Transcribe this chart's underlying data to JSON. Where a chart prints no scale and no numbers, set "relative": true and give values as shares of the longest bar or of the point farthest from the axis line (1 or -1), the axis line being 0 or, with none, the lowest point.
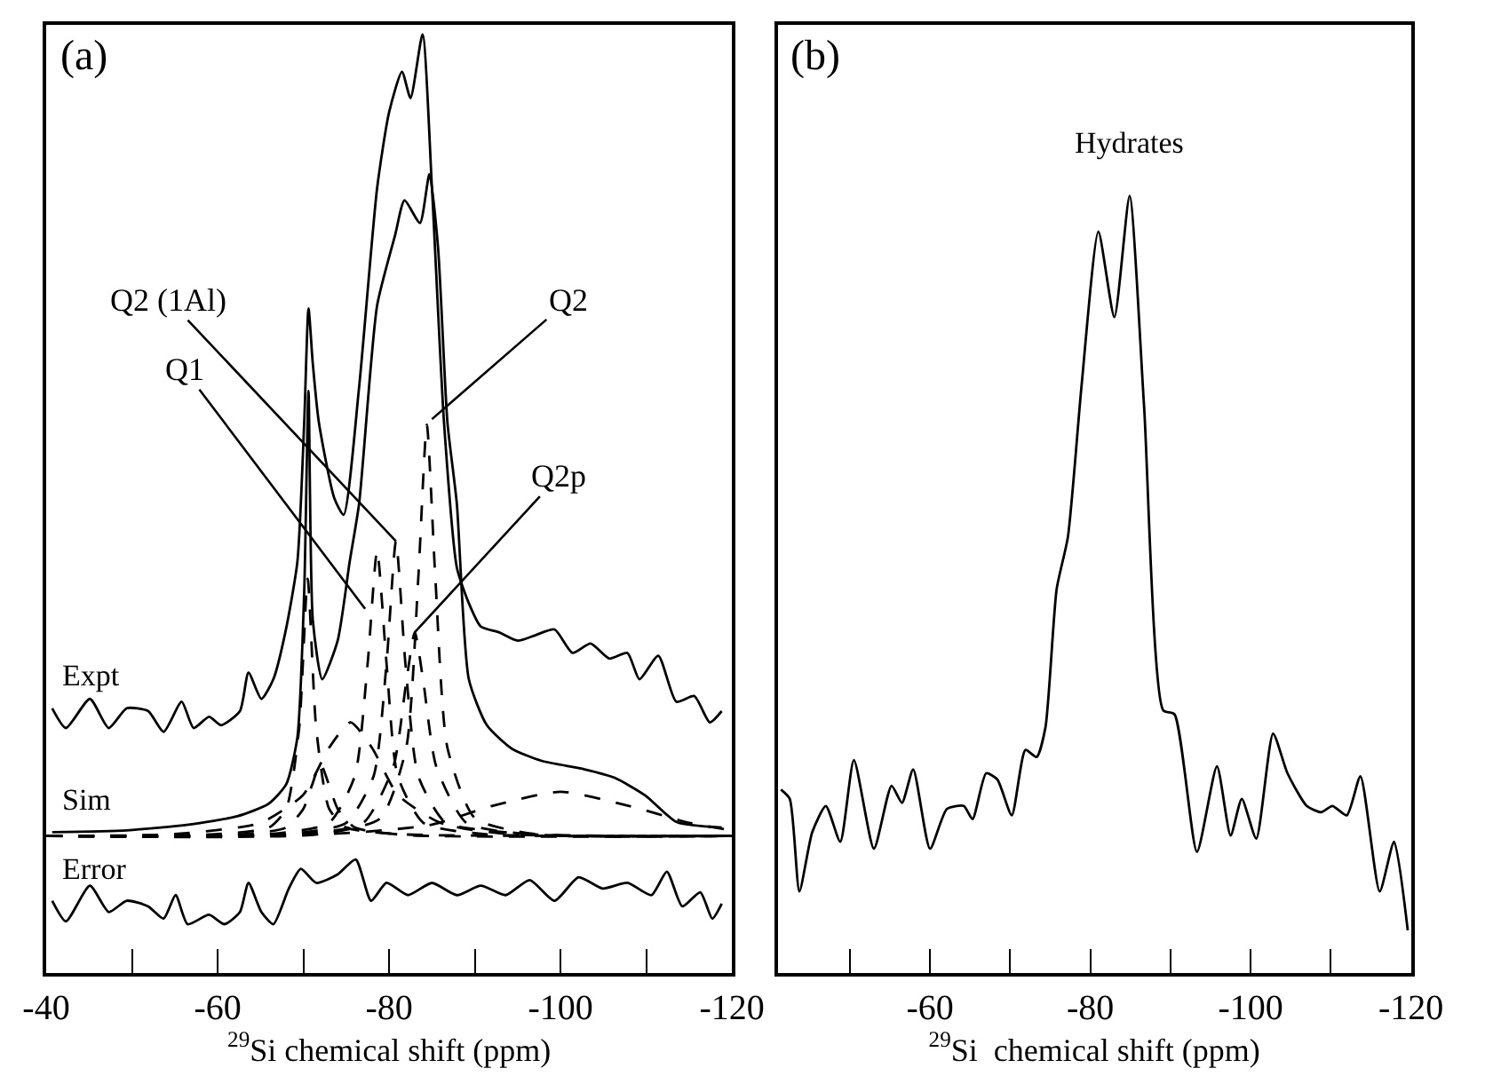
{
  "chart_data": [
    {
      "type": "line",
      "relative": true,
      "xlabel": "$^{29}$Si chemical shift (ppm)",
      "xlim": [
        -40,
        -120
      ],
      "xticks": [
        -40,
        {
          "value": -50,
          "label": null
        },
        -60,
        {
          "value": -70,
          "label": null
        },
        -80,
        {
          "value": -90,
          "label": null
        },
        -100,
        {
          "value": -110,
          "label": null
        },
        -120
      ],
      "tick_labels": "x",
      "legend": false,
      "line_style": "solid",
      "marker": "none",
      "annotations": [
        "(a)",
        {
          "text": "Q2 (1Al)",
          "x": -80.8,
          "y": 0.46
        },
        {
          "text": "Q1",
          "x": -77.2,
          "y": 0.388
        },
        {
          "text": "Q2",
          "x": -85.0,
          "y": 0.59
        },
        {
          "text": "Q2p",
          "x": -83,
          "y": 0.363
        }
      ],
      "series": [
        {
          "name": "Expt",
          "color": "#000000",
          "x": [
            -40.7,
            -42.3,
            -45.1,
            -47.3,
            -49.4,
            -51.9,
            -53.7,
            -55.8,
            -57.2,
            -59.0,
            -60.4,
            -62.6,
            -63.6,
            -65.1,
            -66.5,
            -67.9,
            -69.3,
            -70.1,
            -70.6,
            -71.1,
            -71.8,
            -73.6,
            -74.7,
            -76.5,
            -78.6,
            -80.0,
            -81.5,
            -82.5,
            -83.9,
            -85.0,
            -86.4,
            -87.9,
            -89.3,
            -90.7,
            -92.8,
            -95.0,
            -97.1,
            -99.3,
            -101.4,
            -103.5,
            -105.7,
            -107.8,
            -109.2,
            -111.4,
            -113.5,
            -115.6,
            -117.4,
            -118.8
          ],
          "values": [
            0.282,
            0.261,
            0.292,
            0.261,
            0.282,
            0.279,
            0.257,
            0.289,
            0.261,
            0.273,
            0.264,
            0.279,
            0.32,
            0.292,
            0.313,
            0.363,
            0.438,
            0.587,
            0.708,
            0.649,
            0.587,
            0.506,
            0.488,
            0.624,
            0.836,
            0.917,
            0.96,
            0.932,
            1.0,
            0.836,
            0.587,
            0.432,
            0.394,
            0.369,
            0.363,
            0.354,
            0.36,
            0.366,
            0.341,
            0.351,
            0.335,
            0.341,
            0.313,
            0.338,
            0.289,
            0.295,
            0.267,
            0.279
          ]
        },
        {
          "name": "Sim",
          "color": "#000000",
          "x": [
            -40.7,
            -49.4,
            -56.6,
            -62.3,
            -65.9,
            -68.0,
            -69.3,
            -70.1,
            -70.6,
            -71.1,
            -72.2,
            -74.0,
            -75.4,
            -76.5,
            -78.6,
            -80.7,
            -81.8,
            -83.6,
            -84.7,
            -85.7,
            -86.8,
            -87.9,
            -89.3,
            -91.4,
            -94.3,
            -97.8,
            -102.8,
            -106.3,
            -109.9,
            -113.5,
            -118.8
          ],
          "values": [
            0.15,
            0.152,
            0.158,
            0.167,
            0.18,
            0.201,
            0.251,
            0.407,
            0.62,
            0.376,
            0.313,
            0.354,
            0.438,
            0.5,
            0.711,
            0.786,
            0.823,
            0.799,
            0.851,
            0.774,
            0.587,
            0.5,
            0.313,
            0.264,
            0.239,
            0.226,
            0.217,
            0.208,
            0.189,
            0.161,
            0.155
          ]
        },
        {
          "name": "Error",
          "color": "#000000",
          "x": [
            -40.7,
            -42.3,
            -45.1,
            -47.3,
            -49.4,
            -51.9,
            -53.7,
            -55.1,
            -56.5,
            -59.0,
            -60.8,
            -62.6,
            -63.6,
            -65.1,
            -66.5,
            -68.3,
            -69.7,
            -71.5,
            -73.99,
            -76.1,
            -77.9,
            -79.7,
            -82.2,
            -85.0,
            -87.9,
            -90.7,
            -93.6,
            -96.4,
            -99.3,
            -102.1,
            -104.9,
            -107.8,
            -110.6,
            -112.4,
            -114.2,
            -116.3,
            -117.7,
            -118.8
          ],
          "values": [
            0.077,
            0.055,
            0.093,
            0.065,
            0.077,
            0.071,
            0.058,
            0.083,
            0.052,
            0.062,
            0.052,
            0.065,
            0.096,
            0.065,
            0.052,
            0.09,
            0.111,
            0.096,
            0.105,
            0.121,
            0.077,
            0.096,
            0.083,
            0.096,
            0.083,
            0.093,
            0.083,
            0.099,
            0.077,
            0.102,
            0.09,
            0.096,
            0.083,
            0.108,
            0.071,
            0.086,
            0.058,
            0.074
          ]
        },
        {
          "color": "#000000",
          "line_style": "dashed",
          "x": [
            -40,
            -60,
            -66,
            -68,
            -69.5,
            -70.5,
            -71.5,
            -73,
            -75,
            -81,
            -120
          ],
          "values": [
            0.146,
            0.148,
            0.155,
            0.175,
            0.26,
            0.42,
            0.26,
            0.175,
            0.155,
            0.148,
            0.146
          ]
        },
        {
          "color": "#000000",
          "line_style": "dashed",
          "x": [
            -40,
            -62,
            -68,
            -70,
            -71,
            -72,
            -73,
            -74,
            -76,
            -82,
            -120
          ],
          "values": [
            0.146,
            0.147,
            0.155,
            0.175,
            0.2,
            0.223,
            0.2,
            0.175,
            0.155,
            0.147,
            0.146
          ]
        },
        {
          "color": "#000000",
          "line_style": "dashed",
          "x": [
            -40,
            -55,
            -65,
            -70,
            -73,
            -75.5,
            -78,
            -81,
            -86,
            -96,
            -120
          ],
          "values": [
            0.146,
            0.148,
            0.16,
            0.19,
            0.24,
            0.267,
            0.24,
            0.19,
            0.16,
            0.148,
            0.146
          ]
        },
        {
          "color": "#000000",
          "line_style": "dashed",
          "x": [
            -40,
            -66,
            -73,
            -76,
            -77.5,
            -78.6,
            -79.7,
            -81,
            -84,
            -91,
            -120
          ],
          "values": [
            0.146,
            0.148,
            0.16,
            0.21,
            0.33,
            0.45,
            0.33,
            0.21,
            0.16,
            0.148,
            0.146
          ]
        },
        {
          "color": "#000000",
          "line_style": "dashed",
          "x": [
            -40,
            -68,
            -75,
            -78.2,
            -79.7,
            -80.8,
            -81.9,
            -83.4,
            -86.6,
            -94,
            -120
          ],
          "values": [
            0.146,
            0.148,
            0.16,
            0.21,
            0.33,
            0.46,
            0.33,
            0.21,
            0.16,
            0.148,
            0.146
          ]
        },
        {
          "color": "#000000",
          "line_style": "dashed",
          "x": [
            -40,
            -72,
            -79,
            -82,
            -83.4,
            -84.4,
            -85.4,
            -86.8,
            -90,
            -97,
            -120
          ],
          "values": [
            0.146,
            0.148,
            0.165,
            0.24,
            0.42,
            0.584,
            0.42,
            0.24,
            0.165,
            0.148,
            0.146
          ]
        },
        {
          "color": "#000000",
          "line_style": "dashed",
          "x": [
            -40,
            -70,
            -77,
            -80.5,
            -82,
            -83,
            -84,
            -85.5,
            -89,
            -96,
            -120
          ],
          "values": [
            0.146,
            0.148,
            0.16,
            0.22,
            0.31,
            0.363,
            0.31,
            0.22,
            0.16,
            0.148,
            0.146
          ]
        },
        {
          "color": "#000000",
          "line_style": "dashed",
          "x": [
            -40,
            -60,
            -75,
            -85,
            -92,
            -100,
            -108,
            -115,
            -120
          ],
          "values": [
            0.146,
            0.146,
            0.149,
            0.158,
            0.178,
            0.193,
            0.178,
            0.16,
            0.152
          ]
        }
      ]
    },
    {
      "type": "line",
      "relative": true,
      "xlabel": "$^{29}$Si  chemical shift (ppm)",
      "xlim": [
        -41,
        -120
      ],
      "xticks": [
        {
          "value": -50,
          "label": null
        },
        -60,
        {
          "value": -70,
          "label": null
        },
        -80,
        {
          "value": -90,
          "label": null
        },
        -100,
        {
          "value": -110,
          "label": null
        },
        -120
      ],
      "tick_labels": "x",
      "legend": false,
      "line_style": "solid",
      "marker": "none",
      "annotations": [
        "(b)"
      ],
      "series": [
        {
          "name": "Hydrates",
          "color": "#000000",
          "x": [
            -41.4,
            -42.5,
            -43.7,
            -45.3,
            -47.0,
            -48.8,
            -50.5,
            -53.0,
            -55.2,
            -56.5,
            -57.9,
            -60.0,
            -62.1,
            -64.2,
            -65.3,
            -67.0,
            -68.4,
            -70.2,
            -71.9,
            -73.3,
            -74.4,
            -75.8,
            -77.2,
            -78.9,
            -81.0,
            -83.0,
            -84.9,
            -86.7,
            -89.1,
            -90.5,
            -93.3,
            -95.8,
            -97.5,
            -98.9,
            -100.7,
            -102.8,
            -104.6,
            -107.0,
            -108.8,
            -110.2,
            -112.0,
            -113.7,
            -116.1,
            -117.9,
            -119.6
          ],
          "values": [
            0.236,
            0.224,
            0.105,
            0.181,
            0.215,
            0.169,
            0.274,
            0.16,
            0.241,
            0.219,
            0.262,
            0.16,
            0.211,
            0.215,
            0.198,
            0.257,
            0.249,
            0.203,
            0.287,
            0.278,
            0.316,
            0.494,
            0.561,
            0.755,
            0.954,
            0.844,
            1.0,
            0.73,
            0.338,
            0.333,
            0.156,
            0.266,
            0.177,
            0.224,
            0.173,
            0.308,
            0.257,
            0.215,
            0.207,
            0.215,
            0.203,
            0.253,
            0.105,
            0.169,
            0.055
          ]
        }
      ]
    }
  ]
}
